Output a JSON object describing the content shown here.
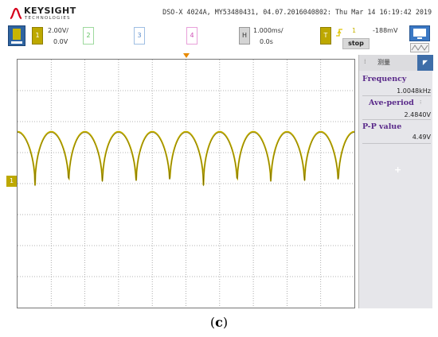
{
  "brand": {
    "name": "KEYSIGHT",
    "sub": "TECHNOLOGIES"
  },
  "header": {
    "model_line": "DSO-X 4024A, MY53480431, 04.07.2016040802: Thu Mar 14 16:19:42 2019"
  },
  "channels": [
    {
      "number": "1",
      "scale": "2.00V/",
      "offset": "0.0V",
      "color": "#c8b400"
    },
    {
      "number": "2",
      "color": "#7cd67c"
    },
    {
      "number": "3",
      "color": "#7fa8d8"
    },
    {
      "number": "4",
      "color": "#e070c8"
    }
  ],
  "timebase": {
    "key": "H",
    "scale": "1.000ms/",
    "delay": "0.0s"
  },
  "trigger": {
    "key": "T",
    "slope_icon": "rising-edge-icon",
    "source": "1",
    "level": "-188mV"
  },
  "run_state": {
    "label": "stop"
  },
  "panel": {
    "title": "测量",
    "measurements": [
      {
        "label": "Frequency",
        "value": "1.0048kHz"
      },
      {
        "label": "Ave-period",
        "value": "2.4840V"
      },
      {
        "label": "P-P value",
        "value": "4.49V"
      }
    ]
  },
  "waveform": {
    "trace_color": "#c8b400",
    "peaks": 10,
    "ground_marker_label": "1"
  },
  "caption": {
    "letter": "c"
  }
}
